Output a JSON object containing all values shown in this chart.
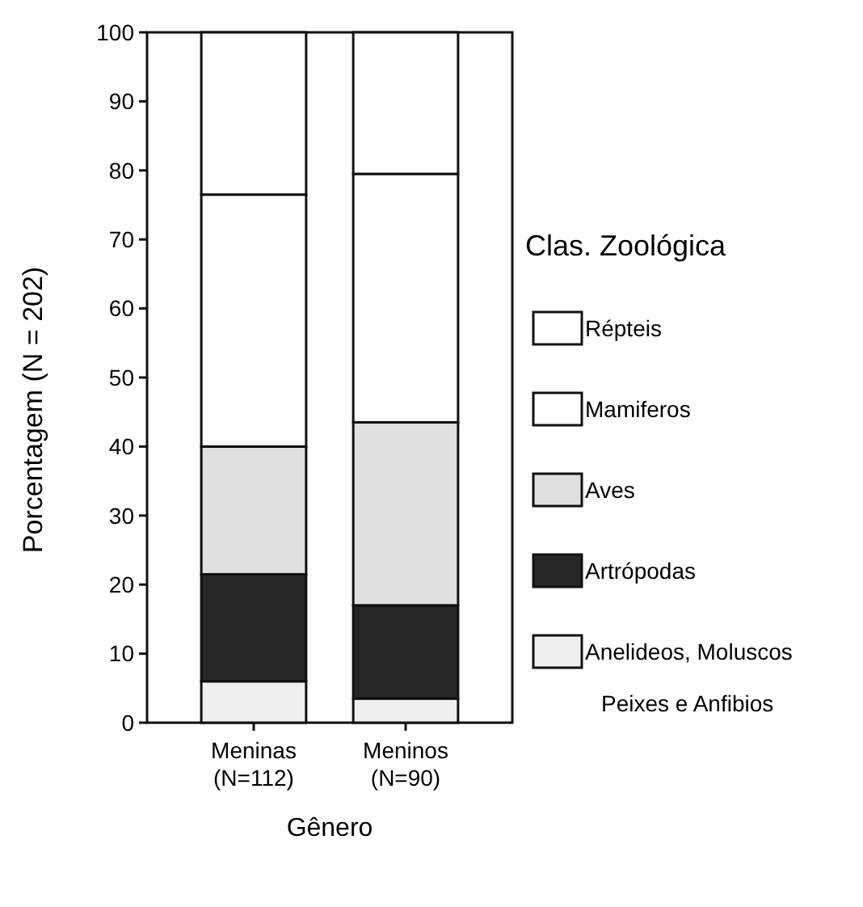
{
  "chart_data": {
    "type": "bar",
    "stacked": true,
    "xlabel": "Gênero",
    "ylabel": "Porcentagem (N = 202)",
    "legend_title": "Clas. Zoológica",
    "legend": "right",
    "categories": [
      "Meninas (N=112)",
      "Meninos (N=90)"
    ],
    "ylim": [
      0,
      100
    ],
    "yticks": [
      0,
      10,
      20,
      30,
      40,
      50,
      60,
      70,
      80,
      90,
      100
    ],
    "series": [
      {
        "name": "Anelideos, Moluscos\nPeixes e Anfibios",
        "color": "#efefef",
        "values": [
          6,
          3.5
        ]
      },
      {
        "name": "Artrópodas",
        "color": "#262626",
        "values": [
          15.5,
          13.5
        ]
      },
      {
        "name": "Aves",
        "color": "#e0e0e0",
        "values": [
          18.5,
          26.5
        ]
      },
      {
        "name": "Mamiferos",
        "color": "#ffffff",
        "values": [
          36.5,
          36
        ]
      },
      {
        "name": "Répteis",
        "color": "#ffffff",
        "values": [
          23.5,
          20.5
        ]
      }
    ]
  }
}
